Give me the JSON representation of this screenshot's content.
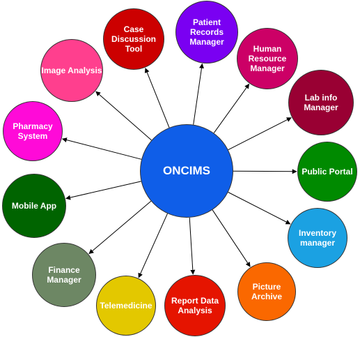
{
  "diagram": {
    "hub": {
      "label": "ONCIMS",
      "color": "#0f5ee8"
    },
    "nodes": [
      {
        "id": "case-discussion-tool",
        "label": "Case\nDiscussion\nTool",
        "color": "#cc0000"
      },
      {
        "id": "patient-records-manager",
        "label": "Patient\nRecords\nManager",
        "color": "#7a00f2"
      },
      {
        "id": "human-resource-manager",
        "label": "Human\nResource\nManager",
        "color": "#cc0066"
      },
      {
        "id": "lab-info-manager",
        "label": "Lab info\nManager",
        "color": "#990033"
      },
      {
        "id": "public-portal",
        "label": "Public Portal",
        "color": "#008a00"
      },
      {
        "id": "inventory-manager",
        "label": "Inventory\nmanager",
        "color": "#1ba1e2"
      },
      {
        "id": "picture-archive",
        "label": "Picture\nArchive",
        "color": "#fa6800"
      },
      {
        "id": "report-data-analysis",
        "label": "Report Data\nAnalysis",
        "color": "#e51400"
      },
      {
        "id": "telemedicine",
        "label": "Telemedicine",
        "color": "#e3c800"
      },
      {
        "id": "finance-manager",
        "label": "Finance\nManager",
        "color": "#6d8764"
      },
      {
        "id": "mobile-app",
        "label": "Mobile App",
        "color": "#006400"
      },
      {
        "id": "pharmacy-system",
        "label": "Pharmacy\nSystem",
        "color": "#ff0ad8"
      },
      {
        "id": "image-analysis",
        "label": "Image Analysis",
        "color": "#ff3f8e"
      }
    ]
  }
}
